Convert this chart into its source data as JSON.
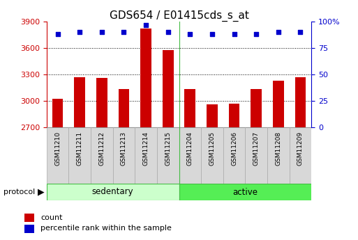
{
  "title": "GDS654 / E01415cds_s_at",
  "samples": [
    "GSM11210",
    "GSM11211",
    "GSM11212",
    "GSM11213",
    "GSM11214",
    "GSM11215",
    "GSM11204",
    "GSM11205",
    "GSM11206",
    "GSM11207",
    "GSM11208",
    "GSM11209"
  ],
  "counts": [
    3025,
    3270,
    3260,
    3130,
    3820,
    3580,
    3130,
    2960,
    2970,
    3130,
    3230,
    3270
  ],
  "percentile_ranks": [
    88,
    90,
    90,
    90,
    97,
    90,
    88,
    88,
    88,
    88,
    90,
    90
  ],
  "ylim_left": [
    2700,
    3900
  ],
  "ylim_right": [
    0,
    100
  ],
  "yticks_left": [
    2700,
    3000,
    3300,
    3600,
    3900
  ],
  "yticks_right": [
    0,
    25,
    50,
    75,
    100
  ],
  "bar_color": "#cc0000",
  "dot_color": "#0000cc",
  "title_fontsize": 11,
  "bar_width": 0.5,
  "group_sep": 5.5,
  "sedentary_color": "#ccffcc",
  "active_color": "#55ee55",
  "sedentary_edge": "#44bb44",
  "active_edge": "#44bb44",
  "tick_label_gray": "#c8c8c8"
}
